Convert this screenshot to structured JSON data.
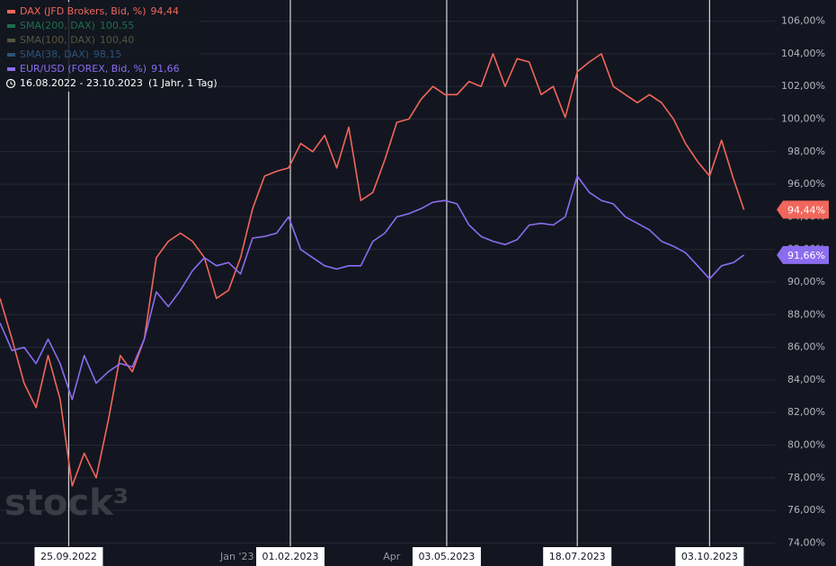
{
  "chart_data": {
    "type": "line",
    "x": [
      "2022-08-16",
      "2022-08-23",
      "2022-08-30",
      "2022-09-06",
      "2022-09-13",
      "2022-09-20",
      "2022-09-27",
      "2022-10-04",
      "2022-10-11",
      "2022-10-18",
      "2022-10-25",
      "2022-11-01",
      "2022-11-08",
      "2022-11-15",
      "2022-11-22",
      "2022-11-29",
      "2022-12-06",
      "2022-12-13",
      "2022-12-20",
      "2022-12-27",
      "2023-01-03",
      "2023-01-10",
      "2023-01-17",
      "2023-01-24",
      "2023-01-31",
      "2023-02-07",
      "2023-02-14",
      "2023-02-21",
      "2023-02-28",
      "2023-03-07",
      "2023-03-14",
      "2023-03-21",
      "2023-03-28",
      "2023-04-04",
      "2023-04-11",
      "2023-04-18",
      "2023-04-25",
      "2023-05-02",
      "2023-05-09",
      "2023-05-16",
      "2023-05-23",
      "2023-05-30",
      "2023-06-06",
      "2023-06-13",
      "2023-06-20",
      "2023-06-27",
      "2023-07-04",
      "2023-07-11",
      "2023-07-18",
      "2023-07-25",
      "2023-08-01",
      "2023-08-08",
      "2023-08-15",
      "2023-08-22",
      "2023-08-29",
      "2023-09-05",
      "2023-09-12",
      "2023-09-19",
      "2023-09-26",
      "2023-10-03",
      "2023-10-10",
      "2023-10-17",
      "2023-10-23"
    ],
    "series": [
      {
        "name": "DAX (JFD Brokers, Bid, %)",
        "legend_value": "94,44",
        "last_label": "94,44%",
        "color": "#f2665b",
        "values": [
          89.0,
          86.5,
          83.8,
          82.3,
          85.5,
          82.8,
          77.5,
          79.5,
          78.0,
          81.5,
          85.5,
          84.5,
          86.5,
          91.5,
          92.5,
          93.0,
          92.5,
          91.5,
          89.0,
          89.5,
          91.5,
          94.5,
          96.5,
          96.8,
          97.0,
          98.5,
          98.0,
          99.0,
          97.0,
          99.5,
          95.0,
          95.5,
          97.5,
          99.8,
          100.0,
          101.2,
          102.0,
          101.5,
          101.5,
          102.3,
          102.0,
          104.0,
          102.0,
          103.7,
          103.5,
          101.5,
          102.0,
          100.1,
          102.9,
          103.5,
          104.0,
          102.0,
          101.5,
          101.0,
          101.5,
          101.0,
          100.0,
          98.5,
          97.4,
          96.5,
          98.7,
          96.3,
          94.44
        ]
      },
      {
        "name": "EUR/USD (FOREX, Bid, %)",
        "legend_value": "91,66",
        "last_label": "91,66%",
        "color": "#8b6cf0",
        "values": [
          87.5,
          85.8,
          86.0,
          85.0,
          86.5,
          85.0,
          82.8,
          85.5,
          83.8,
          84.5,
          85.0,
          84.8,
          86.5,
          89.4,
          88.5,
          89.5,
          90.7,
          91.5,
          91.0,
          91.2,
          90.5,
          92.7,
          92.8,
          93.0,
          94.0,
          92.0,
          91.5,
          91.0,
          90.8,
          91.0,
          91.0,
          92.5,
          93.0,
          94.0,
          94.2,
          94.5,
          94.9,
          95.0,
          94.8,
          93.5,
          92.8,
          92.5,
          92.3,
          92.6,
          93.5,
          93.6,
          93.5,
          94.0,
          96.5,
          95.5,
          95.0,
          94.8,
          94.0,
          93.6,
          93.2,
          92.5,
          92.2,
          91.8,
          91.0,
          90.2,
          91.0,
          91.2,
          91.66
        ]
      }
    ],
    "indicators": [
      {
        "name": "SMA(200, DAX)",
        "legend_value": "100,55",
        "color": "#1f6e4c"
      },
      {
        "name": "SMA(100, DAX)",
        "legend_value": "100,40",
        "color": "#57563f"
      },
      {
        "name": "SMA(38, DAX)",
        "legend_value": "98,15",
        "color": "#2d5377"
      }
    ],
    "legend_order": [
      0,
      "i0",
      "i1",
      "i2",
      1
    ],
    "range_label": "16.08.2022 - 23.10.2023",
    "range_note": "(1 Jahr, 1 Tag)",
    "watermark": "stock³",
    "xlim": [
      "2022-08-16",
      "2023-11-10"
    ],
    "xticks": [
      {
        "value": "2022-09-25",
        "label": "25.09.2022"
      },
      {
        "value": "2023-01-01",
        "label": "Jan '23"
      },
      {
        "value": "2023-02-01",
        "label": "01.02.2023"
      },
      {
        "value": "2023-04-01",
        "label": "Apr"
      },
      {
        "value": "2023-05-03",
        "label": "03.05.2023"
      },
      {
        "value": "2023-07-18",
        "label": "18.07.2023"
      },
      {
        "value": "2023-10-03",
        "label": "03.10.2023"
      }
    ],
    "marked_dates": [
      "2022-09-25",
      "2023-02-01",
      "2023-05-03",
      "2023-07-18",
      "2023-10-03"
    ],
    "ylim": [
      73.8,
      107.3
    ],
    "yticks": [
      {
        "value": 74,
        "label": "74,00%"
      },
      {
        "value": 76,
        "label": "76,00%"
      },
      {
        "value": 78,
        "label": "78,00%"
      },
      {
        "value": 80,
        "label": "80,00%"
      },
      {
        "value": 82,
        "label": "82,00%"
      },
      {
        "value": 84,
        "label": "84,00%"
      },
      {
        "value": 86,
        "label": "86,00%"
      },
      {
        "value": 88,
        "label": "88,00%"
      },
      {
        "value": 90,
        "label": "90,00%"
      },
      {
        "value": 92,
        "label": "92,00%"
      },
      {
        "value": 94,
        "label": "94,00%"
      },
      {
        "value": 96,
        "label": "96,00%"
      },
      {
        "value": 98,
        "label": "98,00%"
      },
      {
        "value": 100,
        "label": "100,00%"
      },
      {
        "value": 102,
        "label": "102,00%"
      },
      {
        "value": 104,
        "label": "104,00%"
      },
      {
        "value": 106,
        "label": "106,00%"
      }
    ],
    "grid": true
  }
}
